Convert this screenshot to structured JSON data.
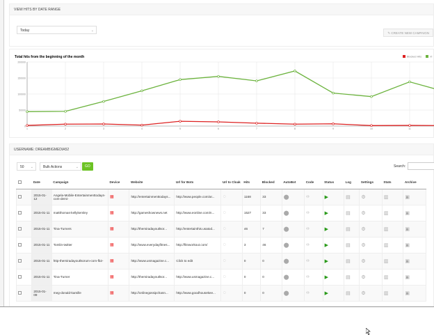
{
  "range_panel": {
    "title": "VIEW HITS BY DATE RANGE",
    "range_value": "Today",
    "create_button": "CREATE NEW CAMPAIGN"
  },
  "chart_data": {
    "type": "line",
    "title": "Total hits from the beginning of the month",
    "x": [
      1,
      2,
      3,
      4,
      5,
      6,
      7,
      8,
      9,
      10,
      11,
      12
    ],
    "x_tick_labels": [
      "1",
      "2",
      "3",
      "4",
      "5",
      "6",
      "7",
      "8",
      "9",
      "10",
      "11"
    ],
    "ylim": [
      0,
      200000
    ],
    "y_ticks": [
      "0",
      "50000",
      "100000",
      "150000",
      "200000"
    ],
    "grid": true,
    "legend_placement": "top-right",
    "series": [
      {
        "name": "Blocked Hits",
        "color": "#dd2222",
        "values": [
          2000,
          6000,
          6500,
          3000,
          15000,
          13000,
          9000,
          6000,
          7000,
          1500,
          2000,
          1500
        ]
      },
      {
        "name": "Vi",
        "color": "#6cb33e",
        "values": [
          45000,
          46000,
          77000,
          110000,
          145000,
          155000,
          141000,
          172000,
          103000,
          92000,
          138000,
          105000
        ]
      }
    ]
  },
  "table_panel": {
    "title": "USERNAME: DREAMBIGMEDIA52",
    "page_size": "50",
    "bulk_actions": "Bulk Actions",
    "go": "GO",
    "search_label": "Search:",
    "columns": [
      "Date",
      "Campaign",
      "Device",
      "Website",
      "Url for Bots",
      "Url to Cloak",
      "Hits",
      "Blocked",
      "AutoBot",
      "Code",
      "Status",
      "Log",
      "Settings",
      "Stats",
      "Archive"
    ],
    "rows": [
      {
        "date": "2015-01-12",
        "campaign": "Angela-Mobile-Entertainmenttodays-com-demi-",
        "website": "http://entertainmenttodays...",
        "bots": "http://www.people.com/ar...",
        "hits": "1168",
        "blocked": "33"
      },
      {
        "date": "2015-01-11",
        "campaign": "mattthomas-kellykemley",
        "website": "http://gameshownews.net",
        "bots": "http://www.eonline.com/n...",
        "hits": "1527",
        "blocked": "33"
      },
      {
        "date": "2015-01-11",
        "campaign": "Tina-Turners",
        "website": "http://themiradayoutlsor...",
        "bots": "http://entertainthis.usatod...",
        "hits": "46",
        "blocked": "7"
      },
      {
        "date": "2015-01-11",
        "campaign": "Tomlin-twitter",
        "website": "http://www.everydayfitnes...",
        "bots": "http://fitnworkout.com/",
        "hits": "3",
        "blocked": "46"
      },
      {
        "date": "2015-01-11",
        "campaign": "http-themiradayoutlsorum-com-fb2-",
        "website": "http://www.usmagazine.c...",
        "bots": "Click to edit",
        "hits": "0",
        "blocked": "0"
      },
      {
        "date": "2015-01-11",
        "campaign": "Tina-Turner",
        "website": "http://themiradayoutlsor...",
        "bots": "http://www.usmagazine.c...",
        "hits": "0",
        "blocked": "0"
      },
      {
        "date": "2015-01-09",
        "campaign": "meg-donald-kamille",
        "website": "http://onlinegossipchann...",
        "bots": "http://www.goodhousekee...",
        "hits": "0",
        "blocked": "0"
      }
    ]
  }
}
